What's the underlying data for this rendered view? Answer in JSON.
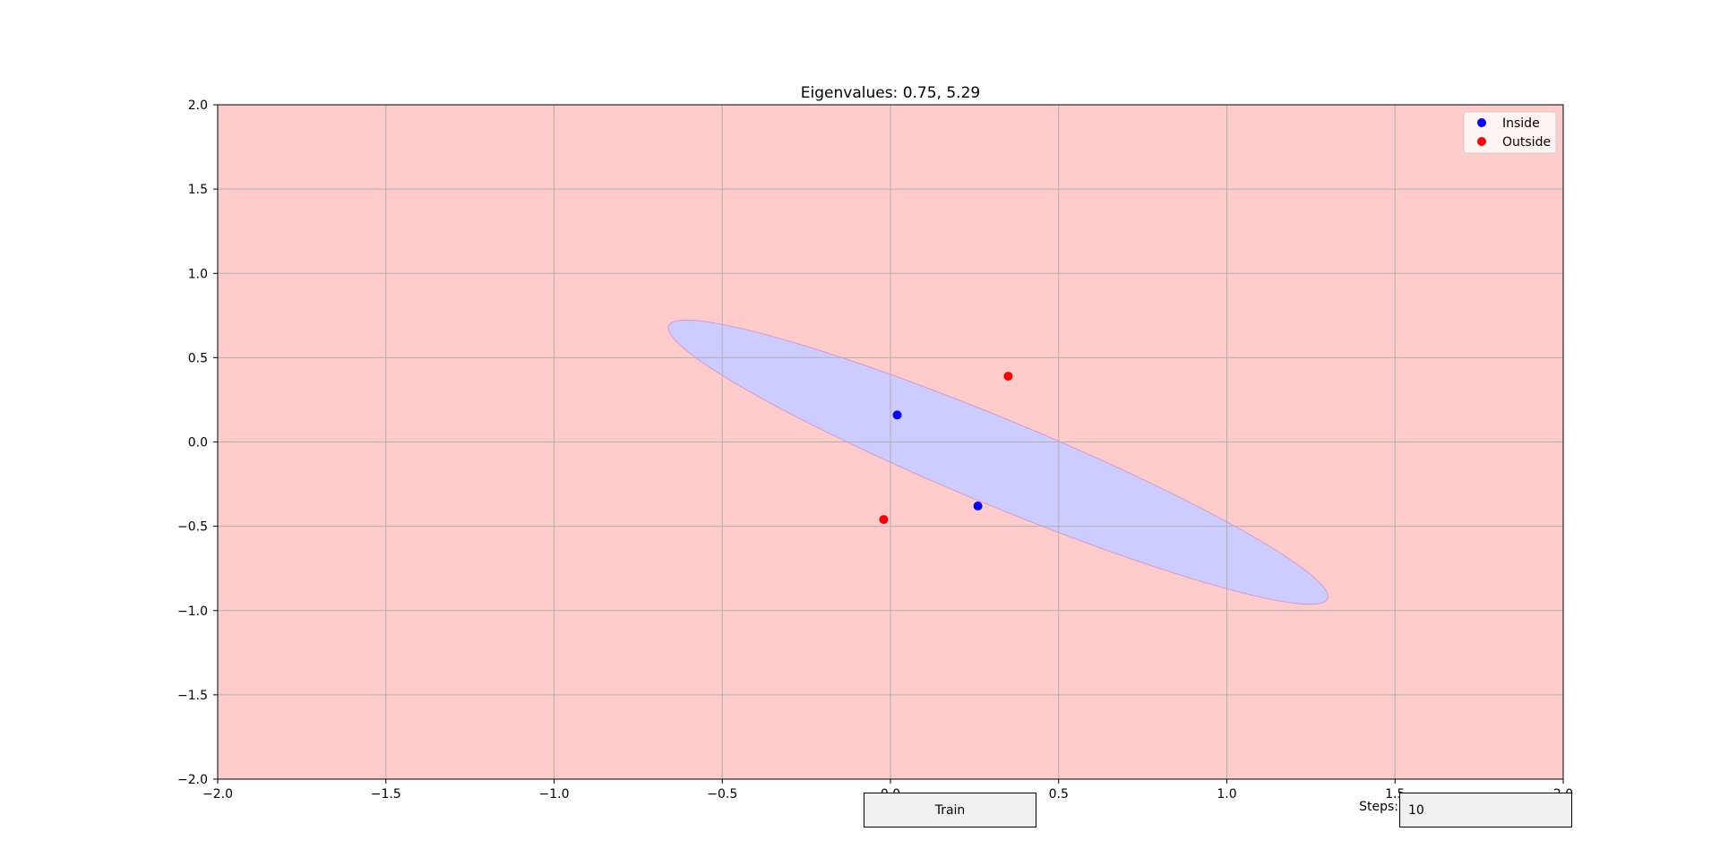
{
  "chart_data": {
    "type": "scatter",
    "title": "Eigenvalues: 0.75, 5.29",
    "xlabel": "",
    "ylabel": "",
    "xlim": [
      -2.0,
      2.0
    ],
    "ylim": [
      -2.0,
      2.0
    ],
    "x_ticks": [
      "−2.0",
      "−1.5",
      "−1.0",
      "−0.5",
      "0.0",
      "0.5",
      "1.0",
      "1.5",
      "2.0"
    ],
    "y_ticks": [
      "2.0",
      "1.5",
      "1.0",
      "0.5",
      "0.0",
      "−0.5",
      "−1.0",
      "−1.5",
      "−2.0"
    ],
    "grid": true,
    "background_region_color": "#ffcccc",
    "ellipse_region": {
      "fill": "#ccccff",
      "edge": "#d58aca",
      "center": [
        0.32,
        -0.12
      ],
      "semi_axes_data_units": [
        1.06,
        0.255
      ],
      "angle_deg": -22.5
    },
    "series": [
      {
        "name": "Inside",
        "color": "#0000ff",
        "points": [
          [
            0.02,
            0.16
          ],
          [
            0.26,
            -0.38
          ]
        ]
      },
      {
        "name": "Outside",
        "color": "#ff0000",
        "points": [
          [
            0.35,
            0.39
          ],
          [
            -0.02,
            -0.46
          ]
        ]
      }
    ],
    "legend": {
      "position": "upper right",
      "entries": [
        "Inside",
        "Outside"
      ]
    }
  },
  "controls": {
    "train_button_label": "Train",
    "steps_label": "Steps:",
    "steps_value": "10"
  }
}
